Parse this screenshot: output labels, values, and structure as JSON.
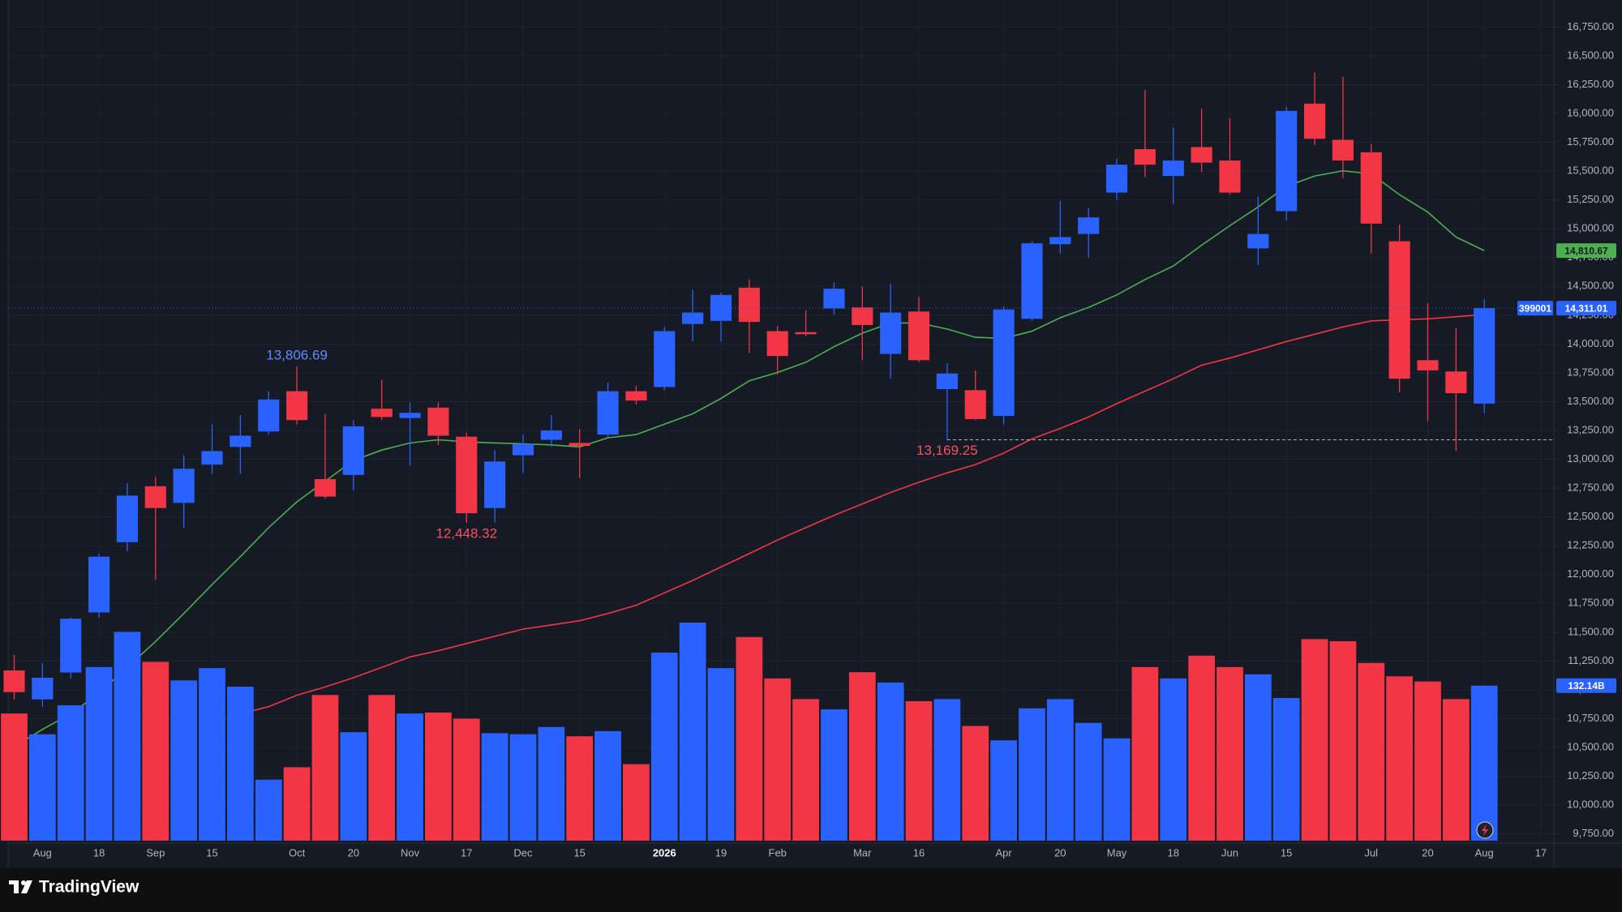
{
  "chart_data": {
    "type": "candlestick",
    "symbol": "399001",
    "brand": "TradingView",
    "up_color": "#2962ff",
    "down_color": "#f23645",
    "grid": true,
    "price_line": true,
    "categories": [
      null,
      "Aug",
      null,
      "18",
      null,
      "Sep",
      null,
      "15",
      null,
      null,
      "Oct",
      null,
      "20",
      null,
      "Nov",
      null,
      "17",
      null,
      "Dec",
      null,
      "15",
      null,
      null,
      "2026",
      null,
      "19",
      null,
      "Feb",
      null,
      null,
      "Mar",
      null,
      "16",
      null,
      null,
      "Apr",
      null,
      "20",
      null,
      "May",
      null,
      "18",
      null,
      "Jun",
      null,
      "15",
      null,
      null,
      "Jul",
      null,
      "20",
      null,
      "Aug",
      null,
      "17"
    ],
    "open": [
      11168,
      10917,
      11150,
      11671,
      12281,
      12766,
      12622,
      12954,
      13107,
      13241,
      13591,
      12828,
      12864,
      13439,
      13358,
      13448,
      13196,
      12577,
      13035,
      13169,
      13142,
      13214,
      13591,
      13627,
      14174,
      14201,
      14489,
      14112,
      14103,
      14309,
      14318,
      13914,
      14282,
      13609,
      13600,
      13376,
      14219,
      14866,
      14955,
      15314,
      15691,
      15458,
      15709,
      15592,
      14830,
      15153,
      16086,
      15772,
      15664,
      14892,
      13860,
      13762,
      13483,
      null,
      null
    ],
    "high": [
      11303,
      11231,
      11626,
      12182,
      12792,
      12846,
      13035,
      13304,
      13383,
      13591,
      13806.69,
      13394,
      13340,
      13690,
      13492,
      13492,
      13232,
      13080,
      13214,
      13385,
      13259,
      13663,
      13636,
      14148,
      14471,
      14444,
      14560,
      14157,
      14291,
      14534,
      14498,
      14524,
      14408,
      13833,
      13771,
      14327,
      14892,
      15242,
      15180,
      15610,
      16203,
      15880,
      16041,
      15960,
      15278,
      16059,
      16355,
      16319,
      15736,
      15036,
      14354,
      14139,
      14390,
      null,
      null
    ],
    "low": [
      10917,
      10854,
      11097,
      11626,
      12200,
      11958,
      12407,
      12873,
      12873,
      13214,
      13304,
      12658,
      12730,
      13340,
      12945,
      13124,
      12448.32,
      12452,
      12882,
      13107,
      12837,
      13196,
      13475,
      13600,
      14022,
      14022,
      13923,
      13735,
      14067,
      14255,
      13860,
      13699,
      13843,
      13169.25,
      13340,
      13304,
      14201,
      14785,
      14749,
      15251,
      15449,
      15215,
      15494,
      15296,
      14686,
      15072,
      15727,
      15440,
      14785,
      13582,
      13331,
      13071,
      13403,
      null,
      null
    ],
    "close": [
      10980,
      11105,
      11617,
      12155,
      12685,
      12577,
      12918,
      13071,
      13205,
      13519,
      13340,
      12676,
      13286,
      13367,
      13403,
      13205,
      12532,
      12981,
      13133,
      13250,
      13116,
      13591,
      13510,
      14112,
      14273,
      14426,
      14192,
      13896,
      14085,
      14480,
      14165,
      14273,
      13860,
      13744,
      13349,
      14300,
      14874,
      14928,
      15099,
      15556,
      15556,
      15592,
      15574,
      15314,
      14955,
      16023,
      15781,
      15592,
      15045,
      13699,
      13771,
      13573,
      14311.01,
      null,
      null
    ],
    "last_label": "14,311.01",
    "volume": [
      108.4,
      90.7,
      115.4,
      148,
      178,
      152.4,
      136.6,
      147.1,
      131.3,
      52,
      62.6,
      124.2,
      92.5,
      124.2,
      108.4,
      109.2,
      104,
      91.6,
      90.7,
      96.9,
      89,
      93.4,
      65.2,
      160.3,
      185.9,
      147.1,
      173.6,
      138.3,
      120.7,
      111.9,
      143.6,
      134.8,
      118.9,
      120.7,
      97.8,
      85.5,
      112.8,
      120.7,
      100.4,
      87.2,
      148,
      138.3,
      157.7,
      148,
      141.8,
      121.6,
      171.8,
      170,
      151.5,
      140.1,
      135.7,
      120.7,
      132.14,
      null,
      null
    ],
    "volume_label": "132.14B",
    "series": [
      {
        "color": "#4caf50",
        "last_label": "14,810.67",
        "values": [
          10504,
          10657,
          10791,
          10971,
          11195,
          11419,
          11662,
          11913,
          12155,
          12407,
          12631,
          12810,
          12990,
          13080,
          13142,
          13169,
          13151,
          13142,
          13134,
          13125,
          13107,
          13187,
          13214,
          13304,
          13394,
          13528,
          13681,
          13753,
          13842,
          13977,
          14094,
          14183,
          14183,
          14130,
          14058,
          14049,
          14112,
          14228,
          14318,
          14426,
          14560,
          14677,
          14857,
          15027,
          15189,
          15368,
          15458,
          15503,
          15476,
          15296,
          15144,
          14928,
          14810.67,
          null,
          null
        ]
      },
      {
        "color": "#f23645",
        "values": [
          null,
          null,
          null,
          null,
          null,
          null,
          null,
          null,
          10791,
          10854,
          10953,
          11025,
          11105,
          11195,
          11285,
          11339,
          11402,
          11464,
          11527,
          11563,
          11599,
          11662,
          11734,
          11841,
          11949,
          12066,
          12182,
          12299,
          12407,
          12514,
          12613,
          12712,
          12801,
          12882,
          12954,
          13053,
          13178,
          13268,
          13367,
          13483,
          13591,
          13699,
          13816,
          13878,
          13950,
          14022,
          14085,
          14148,
          14201,
          14210,
          14219,
          14237,
          14255,
          null,
          null
        ]
      }
    ],
    "annotations": [
      {
        "label": "13,806.69",
        "value": 13806.69
      },
      {
        "label": "12,448.32",
        "value": 12448.32
      },
      {
        "label": "13,169.25",
        "value": 13169.25,
        "extend_line": true
      }
    ],
    "ylim": [
      9670,
      16985
    ],
    "yticks": [
      {
        "value": 9750,
        "label": "9,750.00"
      },
      {
        "value": 10000,
        "label": "10,000.00"
      },
      {
        "value": 10250,
        "label": "10,250.00"
      },
      {
        "value": 10500,
        "label": "10,500.00"
      },
      {
        "value": 10750,
        "label": "10,750.00"
      },
      {
        "value": 11000,
        "label": "11,000.00"
      },
      {
        "value": 11250,
        "label": "11,250.00"
      },
      {
        "value": 11500,
        "label": "11,500.00"
      },
      {
        "value": 11750,
        "label": "11,750.00"
      },
      {
        "value": 12000,
        "label": "12,000.00"
      },
      {
        "value": 12250,
        "label": "12,250.00"
      },
      {
        "value": 12500,
        "label": "12,500.00"
      },
      {
        "value": 12750,
        "label": "12,750.00"
      },
      {
        "value": 13000,
        "label": "13,000.00"
      },
      {
        "value": 13250,
        "label": "13,250.00"
      },
      {
        "value": 13500,
        "label": "13,500.00"
      },
      {
        "value": 13750,
        "label": "13,750.00"
      },
      {
        "value": 14000,
        "label": "14,000.00"
      },
      {
        "value": 14250,
        "label": "14,250.00"
      },
      {
        "value": 14500,
        "label": "14,500.00"
      },
      {
        "value": 14750,
        "label": "14,750.00"
      },
      {
        "value": 15000,
        "label": "15,000.00"
      },
      {
        "value": 15250,
        "label": "15,250.00"
      },
      {
        "value": 15500,
        "label": "15,500.00"
      },
      {
        "value": 15750,
        "label": "15,750.00"
      },
      {
        "value": 16000,
        "label": "16,000.00"
      },
      {
        "value": 16250,
        "label": "16,250.00"
      },
      {
        "value": 16500,
        "label": "16,500.00"
      },
      {
        "value": 16750,
        "label": "16,750.00"
      }
    ]
  }
}
